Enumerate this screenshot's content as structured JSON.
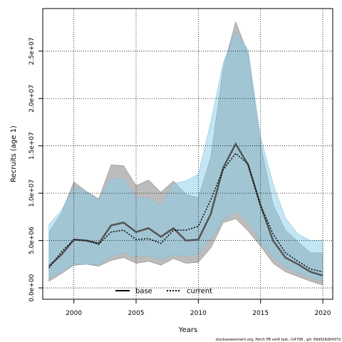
{
  "chart_data": {
    "type": "area",
    "title": "",
    "xlabel": "Years",
    "ylabel": "Recruits (age 1)",
    "xlim": [
      1997.5,
      2020.8
    ],
    "ylim": [
      -1200000,
      29500000
    ],
    "x_ticks": [
      2000,
      2005,
      2010,
      2015,
      2020
    ],
    "x_tick_labels": [
      "2000",
      "2005",
      "2010",
      "2015",
      "2020"
    ],
    "y_ticks": [
      0,
      5000000,
      10000000,
      15000000,
      20000000,
      25000000
    ],
    "y_tick_labels": [
      "0.0e+00",
      "5.0e+06",
      "1.0e+07",
      "1.5e+07",
      "2.0e+07",
      "2.5e+07"
    ],
    "grid": true,
    "legend_position": "bottom-left",
    "colors": {
      "base_band": "#8f8f8f",
      "current_band": "#87ceeb",
      "overlap_band": "#a6c5d6",
      "base_line": "#555555",
      "current_line": "#000000"
    },
    "x": [
      1998,
      1999,
      2000,
      2001,
      2002,
      2003,
      2004,
      2005,
      2006,
      2007,
      2008,
      2009,
      2010,
      2011,
      2012,
      2013,
      2014,
      2015,
      2016,
      2017,
      2018,
      2019,
      2020
    ],
    "series": [
      {
        "name": "base",
        "style": "solid",
        "values": [
          2300000,
          3500000,
          5100000,
          5000000,
          4700000,
          6600000,
          6900000,
          5900000,
          6300000,
          5400000,
          6300000,
          5000000,
          5100000,
          7800000,
          12700000,
          15200000,
          13000000,
          8700000,
          5000000,
          3200000,
          2500000,
          1700000,
          1300000
        ],
        "lower": [
          700000,
          1500000,
          2400000,
          2500000,
          2300000,
          2900000,
          3200000,
          2600000,
          2800000,
          2400000,
          3100000,
          2600000,
          2700000,
          4200000,
          6900000,
          7300000,
          6000000,
          4400000,
          2600000,
          1700000,
          1200000,
          700000,
          300000
        ],
        "upper": [
          5900000,
          7900000,
          11200000,
          10200000,
          9400000,
          13000000,
          12900000,
          10800000,
          11400000,
          10100000,
          11300000,
          9900000,
          9500000,
          13800000,
          23200000,
          28100000,
          24700000,
          15200000,
          8800000,
          6100000,
          4900000,
          3700000,
          3700000
        ]
      },
      {
        "name": "current",
        "style": "dotted",
        "values": [
          2100000,
          3800000,
          5100000,
          5000000,
          4600000,
          5900000,
          6100000,
          5100000,
          5200000,
          4700000,
          6100000,
          6100000,
          6500000,
          9300000,
          12500000,
          14200000,
          13100000,
          8700000,
          5700000,
          3700000,
          2800000,
          2000000,
          1700000
        ],
        "lower": [
          1000000,
          1700000,
          2500000,
          2500000,
          2400000,
          3300000,
          3700000,
          3300000,
          3400000,
          3000000,
          3500000,
          3300000,
          3600000,
          5200000,
          7200000,
          8100000,
          7000000,
          4800000,
          3300000,
          2200000,
          1600000,
          1100000,
          700000
        ],
        "upper": [
          6700000,
          8200000,
          10700000,
          10100000,
          9300000,
          11500000,
          11500000,
          9500000,
          9500000,
          8700000,
          11000000,
          11300000,
          12000000,
          17500000,
          23800000,
          27000000,
          25200000,
          16000000,
          11000000,
          7400000,
          5700000,
          5000000,
          5000000
        ]
      }
    ]
  },
  "legend": {
    "base_label": "base",
    "current_label": "current"
  },
  "footer": "stockassessment.org, Perch PB ver6 test, r14798 , git: 69d926d0437d"
}
